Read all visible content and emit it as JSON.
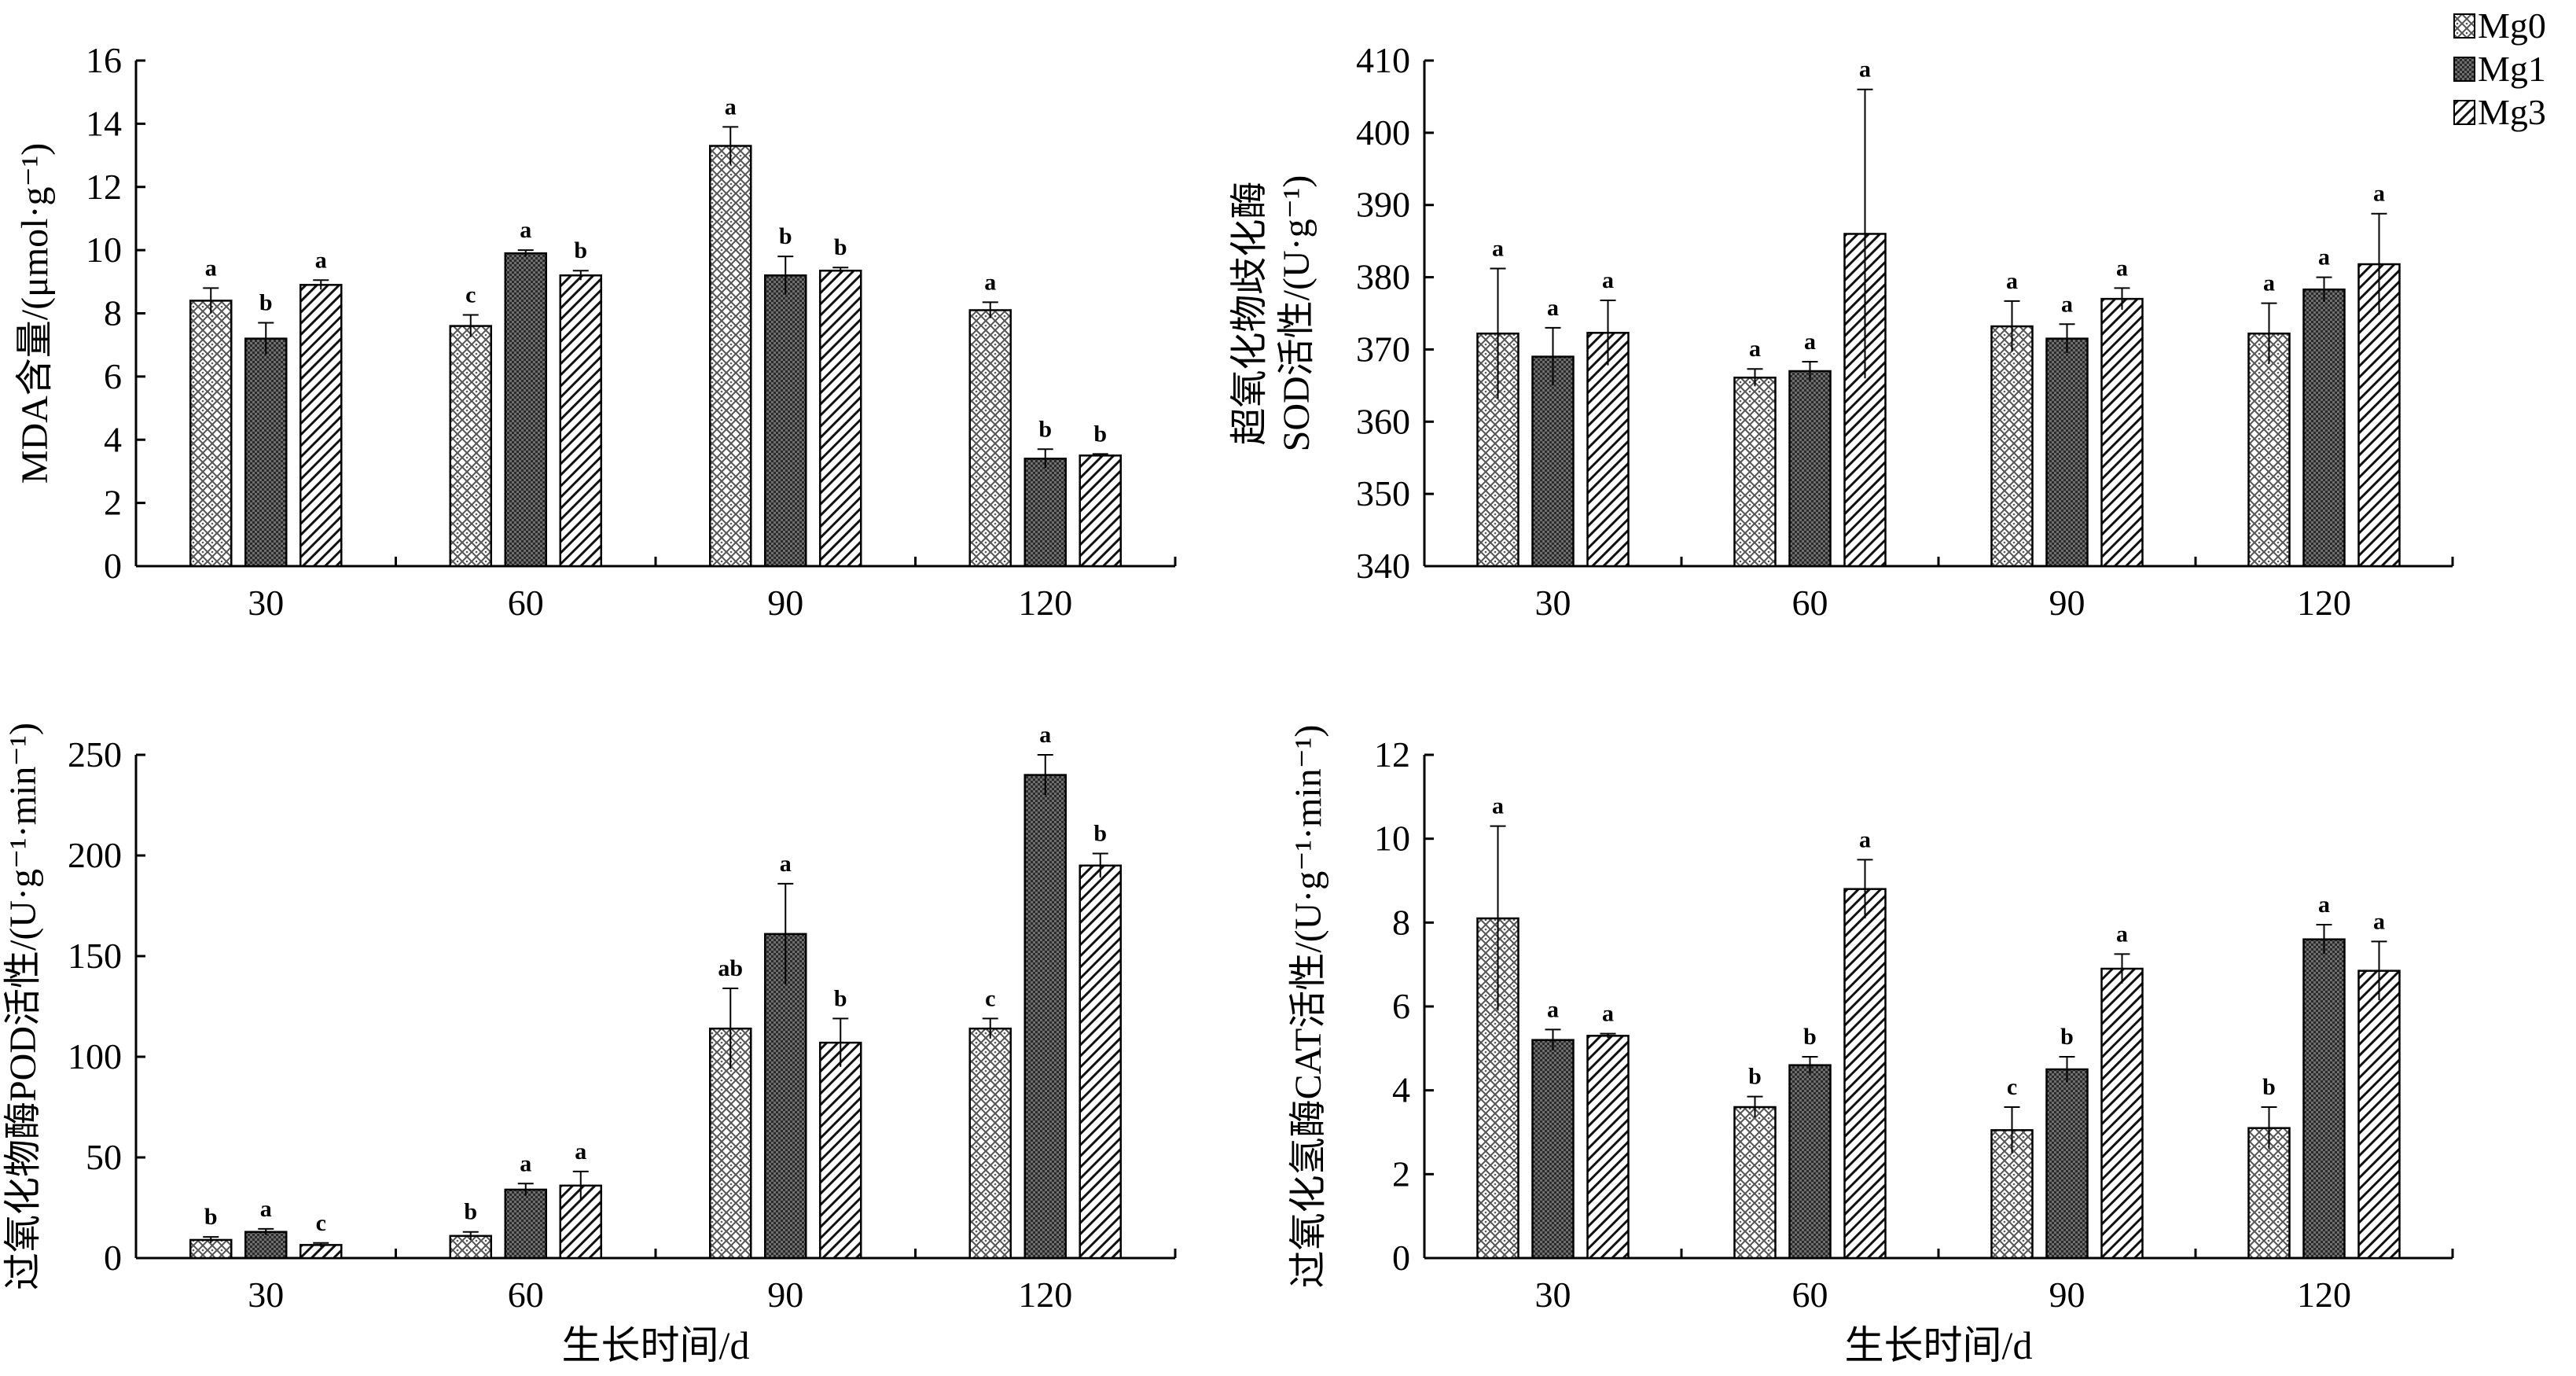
{
  "legend": {
    "entries": [
      {
        "name": "Mg0",
        "pattern": "pat-mg0"
      },
      {
        "name": "Mg1",
        "pattern": "pat-mg1"
      },
      {
        "name": "Mg3",
        "pattern": "pat-mg3"
      }
    ]
  },
  "colors": {
    "axis": "#000000",
    "bar_stroke": "#000000",
    "background": "#ffffff"
  },
  "chart_data": [
    {
      "id": "mda",
      "type": "bar",
      "title": "",
      "ylabel": "MDA含量/(μmol·g-1)",
      "ylabel_lines": [
        "MDA含量/(μmol·g⁻¹)"
      ],
      "xlabel": "",
      "categories": [
        "30",
        "60",
        "90",
        "120"
      ],
      "ylim": [
        0,
        16
      ],
      "yticks": [
        0,
        2,
        4,
        6,
        8,
        10,
        12,
        14,
        16
      ],
      "series": [
        {
          "name": "Mg0",
          "values": [
            8.4,
            7.6,
            13.3,
            8.1
          ],
          "errors": [
            0.4,
            0.35,
            0.6,
            0.25
          ],
          "letters": [
            "a",
            "c",
            "a",
            "a"
          ]
        },
        {
          "name": "Mg1",
          "values": [
            7.2,
            9.9,
            9.2,
            3.4
          ],
          "errors": [
            0.5,
            0.1,
            0.6,
            0.3
          ],
          "letters": [
            "b",
            "a",
            "b",
            "b"
          ]
        },
        {
          "name": "Mg3",
          "values": [
            8.9,
            9.2,
            9.35,
            3.5
          ],
          "errors": [
            0.15,
            0.15,
            0.1,
            0.05
          ],
          "letters": [
            "a",
            "b",
            "b",
            "b"
          ]
        }
      ]
    },
    {
      "id": "sod",
      "type": "bar",
      "title": "",
      "ylabel": "超氧化物歧化酶SOD活性/(U·g-1)",
      "ylabel_lines": [
        "超氧化物歧化酶",
        "SOD活性/(U·g⁻¹)"
      ],
      "xlabel": "",
      "categories": [
        "30",
        "60",
        "90",
        "120"
      ],
      "ylim": [
        340,
        410
      ],
      "yticks": [
        340,
        350,
        360,
        370,
        380,
        390,
        400,
        410
      ],
      "series": [
        {
          "name": "Mg0",
          "values": [
            372.2,
            366.1,
            373.2,
            372.2
          ],
          "errors": [
            9.0,
            1.2,
            3.5,
            4.2
          ],
          "letters": [
            "a",
            "a",
            "a",
            "a"
          ]
        },
        {
          "name": "Mg1",
          "values": [
            369,
            367,
            371.5,
            378.3
          ],
          "errors": [
            4.0,
            1.3,
            2.0,
            1.7
          ],
          "letters": [
            "a",
            "a",
            "a",
            "a"
          ]
        },
        {
          "name": "Mg3",
          "values": [
            372.3,
            386,
            377,
            381.8
          ],
          "errors": [
            4.5,
            20.0,
            1.5,
            7.0
          ],
          "letters": [
            "a",
            "a",
            "a",
            "a"
          ]
        }
      ]
    },
    {
      "id": "pod",
      "type": "bar",
      "title": "",
      "ylabel": "过氧化物酶POD活性/(U·g-1·min-1)",
      "ylabel_lines": [
        "过氧化物酶POD活性/(U·g⁻¹·min⁻¹)"
      ],
      "xlabel": "生长时间/d",
      "categories": [
        "30",
        "60",
        "90",
        "120"
      ],
      "ylim": [
        0,
        250
      ],
      "yticks": [
        0,
        50,
        100,
        150,
        200,
        250
      ],
      "series": [
        {
          "name": "Mg0",
          "values": [
            9,
            11,
            114,
            114
          ],
          "errors": [
            1.5,
            2,
            20,
            5
          ],
          "letters": [
            "b",
            "b",
            "ab",
            "c"
          ]
        },
        {
          "name": "Mg1",
          "values": [
            13,
            34,
            161,
            240
          ],
          "errors": [
            1.5,
            3,
            25,
            10
          ],
          "letters": [
            "a",
            "a",
            "a",
            "a"
          ]
        },
        {
          "name": "Mg3",
          "values": [
            6.5,
            36,
            107,
            195
          ],
          "errors": [
            1,
            7,
            12,
            6
          ],
          "letters": [
            "c",
            "a",
            "b",
            "b"
          ]
        }
      ]
    },
    {
      "id": "cat",
      "type": "bar",
      "title": "",
      "ylabel": "过氧化氢酶CAT活性/(U·g-1·min-1)",
      "ylabel_lines": [
        "过氧化氢酶CAT活性/(U·g⁻¹·min⁻¹)"
      ],
      "xlabel": "生长时间/d",
      "categories": [
        "30",
        "60",
        "90",
        "120"
      ],
      "ylim": [
        0,
        12
      ],
      "yticks": [
        0,
        2,
        4,
        6,
        8,
        10,
        12
      ],
      "series": [
        {
          "name": "Mg0",
          "values": [
            8.1,
            3.6,
            3.05,
            3.1
          ],
          "errors": [
            2.2,
            0.25,
            0.55,
            0.5
          ],
          "letters": [
            "a",
            "b",
            "c",
            "b"
          ]
        },
        {
          "name": "Mg1",
          "values": [
            5.2,
            4.6,
            4.5,
            7.6
          ],
          "errors": [
            0.25,
            0.2,
            0.3,
            0.35
          ],
          "letters": [
            "a",
            "b",
            "b",
            "a"
          ]
        },
        {
          "name": "Mg3",
          "values": [
            5.3,
            8.8,
            6.9,
            6.85
          ],
          "errors": [
            0.05,
            0.7,
            0.35,
            0.7
          ],
          "letters": [
            "a",
            "a",
            "a",
            "a"
          ]
        }
      ]
    }
  ]
}
